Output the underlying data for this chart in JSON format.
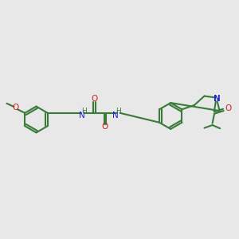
{
  "background_color": "#e8e8e8",
  "bond_color": "#3a7a3a",
  "nitrogen_color": "#2222cc",
  "oxygen_color": "#cc2222",
  "line_width": 1.5,
  "figsize": [
    3.0,
    3.0
  ],
  "dpi": 100,
  "xlim": [
    0,
    10
  ],
  "ylim": [
    2,
    8
  ]
}
